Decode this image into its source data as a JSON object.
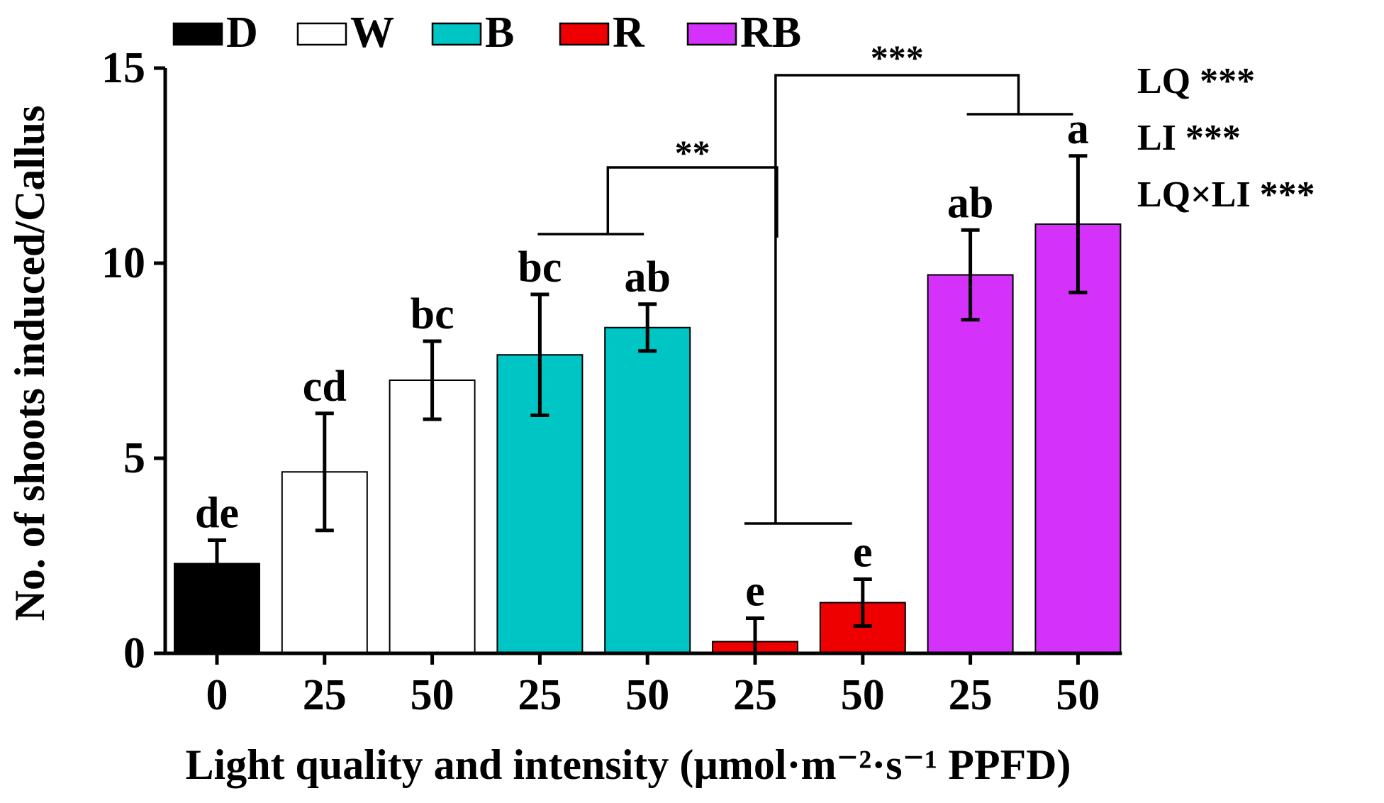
{
  "colors": {
    "D": "#000000",
    "W": "#ffffff",
    "B": "#00c5c5",
    "R": "#ee0000",
    "RB": "#d431fa"
  },
  "chart_data": {
    "type": "bar",
    "title": "",
    "xlabel": "Light quality and intensity (µmol·m⁻²·s⁻¹ PPFD)",
    "ylabel": "No. of shoots induced/Callus",
    "ylim": [
      0,
      15
    ],
    "yticks": [
      "0",
      "5",
      "10",
      "15"
    ],
    "grid": false,
    "legend": {
      "placement": "top",
      "entries": [
        {
          "key": "D",
          "label": "D"
        },
        {
          "key": "W",
          "label": "W"
        },
        {
          "key": "B",
          "label": "B"
        },
        {
          "key": "R",
          "label": "R"
        },
        {
          "key": "RB",
          "label": "RB"
        }
      ]
    },
    "bars": [
      {
        "group": "D",
        "x_label": "0",
        "value": 2.3,
        "error": 0.6,
        "letter": "de"
      },
      {
        "group": "W",
        "x_label": "25",
        "value": 4.65,
        "error": 1.5,
        "letter": "cd"
      },
      {
        "group": "W",
        "x_label": "50",
        "value": 7.0,
        "error": 1.0,
        "letter": "bc"
      },
      {
        "group": "B",
        "x_label": "25",
        "value": 7.65,
        "error": 1.55,
        "letter": "bc"
      },
      {
        "group": "B",
        "x_label": "50",
        "value": 8.35,
        "error": 0.6,
        "letter": "ab"
      },
      {
        "group": "R",
        "x_label": "25",
        "value": 0.3,
        "error": 0.6,
        "letter": "e"
      },
      {
        "group": "R",
        "x_label": "50",
        "value": 1.3,
        "error": 0.6,
        "letter": "e"
      },
      {
        "group": "RB",
        "x_label": "25",
        "value": 9.7,
        "error": 1.15,
        "letter": "ab"
      },
      {
        "group": "RB",
        "x_label": "50",
        "value": 11.0,
        "error": 1.75,
        "letter": "a"
      }
    ],
    "comparisons": [
      {
        "between": [
          "B",
          "R"
        ],
        "label": "**"
      },
      {
        "between": [
          "R",
          "RB"
        ],
        "label": "***"
      }
    ],
    "anova": [
      "LQ ***",
      "LI ***",
      "LQ×LI ***"
    ]
  }
}
